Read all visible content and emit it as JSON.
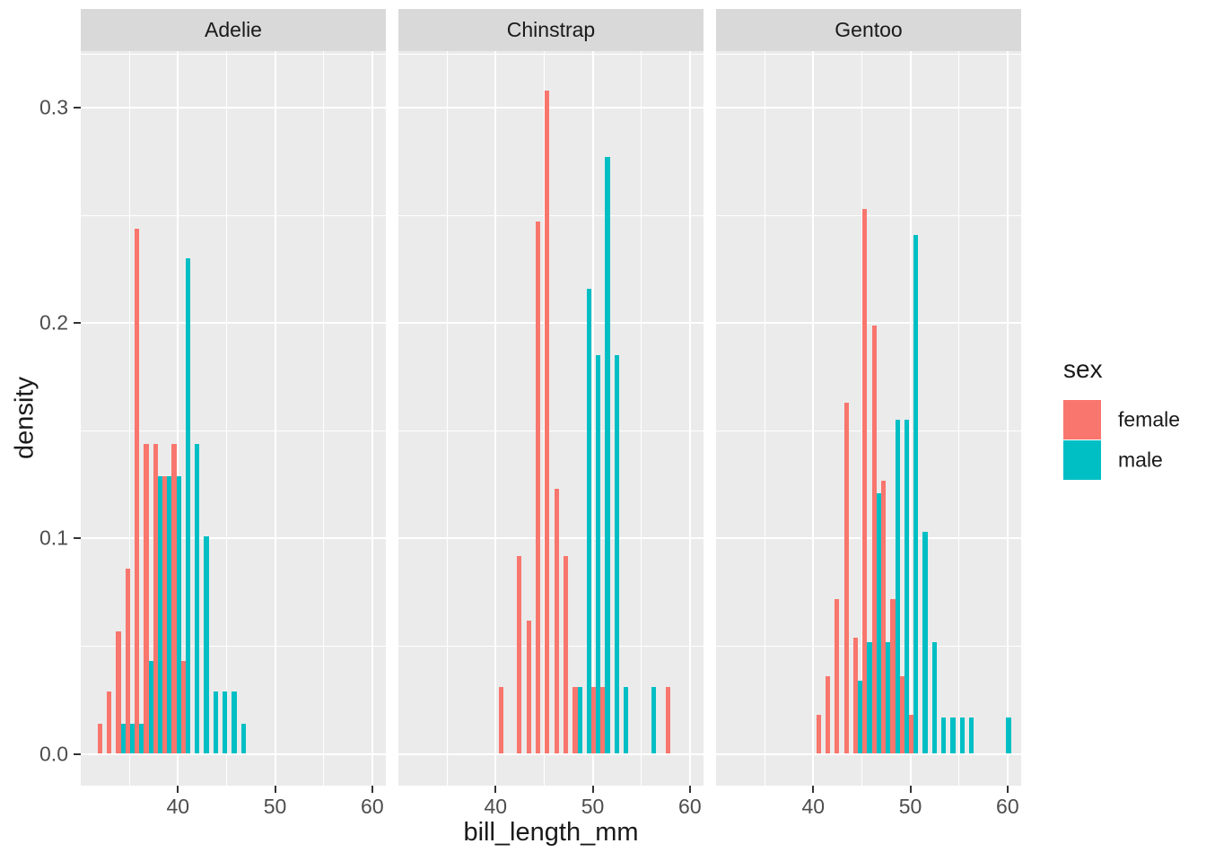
{
  "chart_data": {
    "type": "bar",
    "subtype": "dodged-density-histogram",
    "title": "",
    "xlabel": "bill_length_mm",
    "ylabel": "density",
    "legend": {
      "title": "sex",
      "position": "right",
      "entries": [
        {
          "label": "female",
          "color": "#F8766D"
        },
        {
          "label": "male",
          "color": "#00BFC4"
        }
      ]
    },
    "grid": "on",
    "panel_background": "#EBEBEB",
    "strip_background": "#D9D9D9",
    "gridline_color": "#FFFFFF",
    "tick_color": "#333333",
    "tick_label_color": "#4D4D4D",
    "xlim": [
      30.0,
      61.4
    ],
    "ylim": [
      -0.015,
      0.326
    ],
    "binwidth": 0.954,
    "x_ticks": {
      "values": [
        40,
        50,
        60
      ],
      "labels": [
        "40",
        "50",
        "60"
      ]
    },
    "x_minor": [
      35,
      45,
      55
    ],
    "y_ticks": {
      "values": [
        0,
        0.1,
        0.2,
        0.3
      ],
      "labels": [
        "0.0",
        "0.1",
        "0.2",
        "0.3"
      ]
    },
    "y_minor": [
      0.05,
      0.15,
      0.25,
      0.325
    ],
    "facets": [
      {
        "label": "Adelie",
        "female": [
          [
            31.73,
            0.014
          ],
          [
            32.68,
            0.029
          ],
          [
            33.64,
            0.057
          ],
          [
            34.59,
            0.086
          ],
          [
            35.55,
            0.244
          ],
          [
            36.5,
            0.144
          ],
          [
            37.45,
            0.144
          ],
          [
            38.41,
            0.129
          ],
          [
            39.36,
            0.144
          ],
          [
            40.32,
            0.043
          ]
        ],
        "male": [
          [
            33.64,
            0.014
          ],
          [
            34.59,
            0.014
          ],
          [
            35.55,
            0.014
          ],
          [
            36.5,
            0.043
          ],
          [
            37.45,
            0.129
          ],
          [
            38.41,
            0.129
          ],
          [
            39.36,
            0.129
          ],
          [
            40.32,
            0.23
          ],
          [
            41.27,
            0.144
          ],
          [
            42.22,
            0.101
          ],
          [
            43.18,
            0.029
          ],
          [
            44.13,
            0.029
          ],
          [
            45.08,
            0.029
          ],
          [
            46.04,
            0.014
          ]
        ]
      },
      {
        "label": "Chinstrap",
        "female": [
          [
            40.32,
            0.031
          ],
          [
            42.22,
            0.092
          ],
          [
            43.18,
            0.062
          ],
          [
            44.13,
            0.247
          ],
          [
            45.08,
            0.308
          ],
          [
            46.04,
            0.123
          ],
          [
            46.99,
            0.092
          ],
          [
            47.95,
            0.031
          ],
          [
            49.85,
            0.031
          ],
          [
            50.81,
            0.031
          ],
          [
            57.48,
            0.031
          ]
        ],
        "male": [
          [
            47.95,
            0.031
          ],
          [
            48.9,
            0.216
          ],
          [
            49.85,
            0.185
          ],
          [
            50.81,
            0.277
          ],
          [
            51.76,
            0.185
          ],
          [
            52.71,
            0.031
          ],
          [
            55.58,
            0.031
          ]
        ]
      },
      {
        "label": "Gentoo",
        "female": [
          [
            40.32,
            0.018
          ],
          [
            41.27,
            0.036
          ],
          [
            42.22,
            0.072
          ],
          [
            43.18,
            0.163
          ],
          [
            44.13,
            0.054
          ],
          [
            45.08,
            0.253
          ],
          [
            46.04,
            0.199
          ],
          [
            46.99,
            0.127
          ],
          [
            47.95,
            0.072
          ],
          [
            48.9,
            0.036
          ],
          [
            49.85,
            0.018
          ]
        ],
        "male": [
          [
            44.13,
            0.034
          ],
          [
            45.08,
            0.052
          ],
          [
            46.04,
            0.121
          ],
          [
            46.99,
            0.052
          ],
          [
            47.95,
            0.155
          ],
          [
            48.9,
            0.155
          ],
          [
            49.85,
            0.241
          ],
          [
            50.81,
            0.103
          ],
          [
            51.76,
            0.052
          ],
          [
            52.71,
            0.017
          ],
          [
            53.67,
            0.017
          ],
          [
            54.62,
            0.017
          ],
          [
            55.58,
            0.017
          ],
          [
            59.39,
            0.017
          ]
        ]
      }
    ]
  }
}
